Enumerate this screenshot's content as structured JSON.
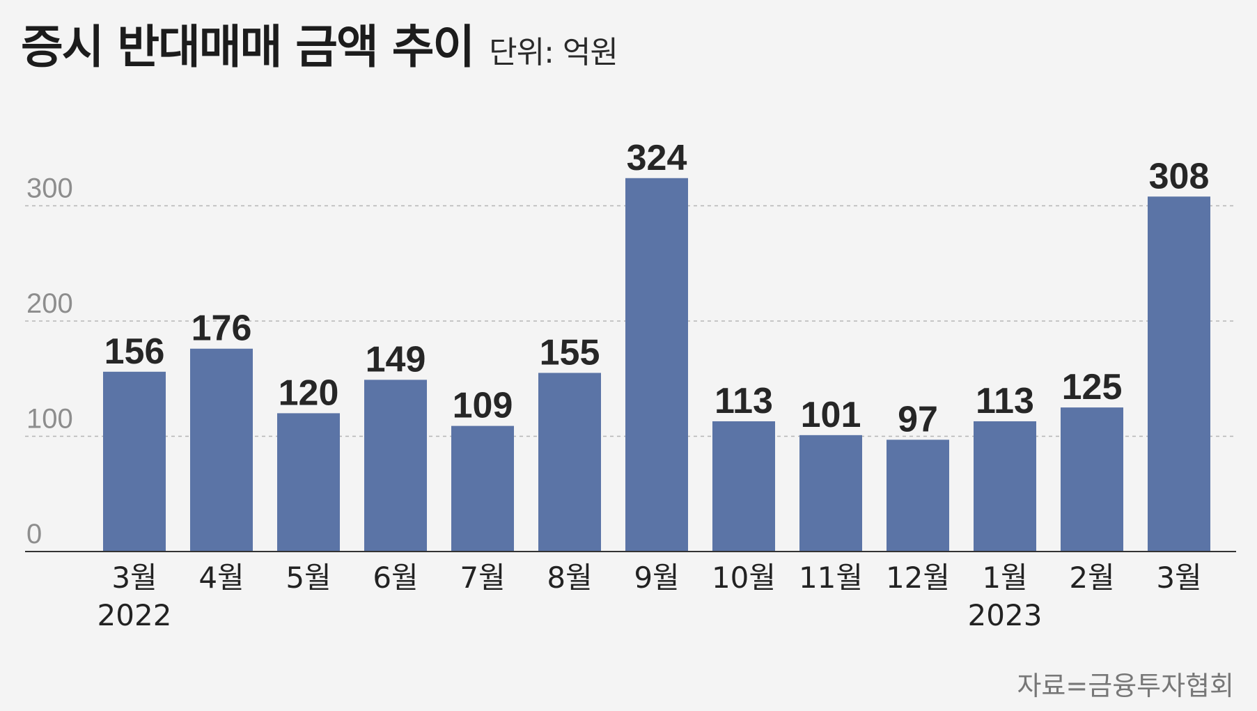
{
  "header": {
    "title": "증시 반대매매 금액 추이",
    "unit": "단위: 억원"
  },
  "source": "자료=금융투자협회",
  "colors": {
    "bar": "#5b74a6",
    "background": "#f4f4f4",
    "gridline": "#b5b5b5",
    "axis": "#333333"
  },
  "chart_data": {
    "type": "bar",
    "categories": [
      "3월",
      "4월",
      "5월",
      "6월",
      "7월",
      "8월",
      "9월",
      "10월",
      "11월",
      "12월",
      "1월",
      "2월",
      "3월"
    ],
    "years": [
      "2022",
      "",
      "",
      "",
      "",
      "",
      "",
      "",
      "",
      "",
      "2023",
      "",
      ""
    ],
    "values": [
      156,
      176,
      120,
      149,
      109,
      155,
      324,
      113,
      101,
      97,
      113,
      125,
      308
    ],
    "title": "증시 반대매매 금액 추이",
    "unit": "단위: 억원",
    "xlabel": "",
    "ylabel": "",
    "ylim": [
      0,
      300
    ],
    "yticks": [
      0,
      100,
      200,
      300
    ],
    "grid": true,
    "data_labels": true
  }
}
